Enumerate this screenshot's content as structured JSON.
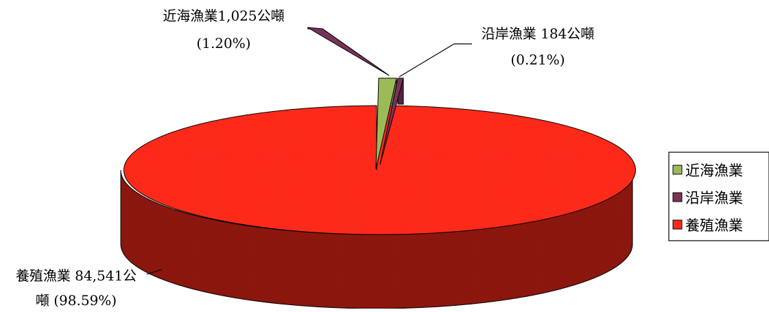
{
  "chart_data": {
    "type": "pie",
    "title": "",
    "slices": [
      {
        "name": "近海漁業",
        "value": 1025,
        "percent": 1.2,
        "color": "#9bbb59",
        "label_line1": "近海漁業1,025公噸",
        "label_line2": "(1.20%)"
      },
      {
        "name": "沿岸漁業",
        "value": 184,
        "percent": 0.21,
        "color": "#7a3358",
        "label_line1": "沿岸漁業 184公噸",
        "label_line2": "(0.21%)"
      },
      {
        "name": "養殖漁業",
        "value": 84541,
        "percent": 98.59,
        "color": "#ff2a1a",
        "label_line1": "養殖漁業 84,541公",
        "label_line2": "噸 (98.59%)"
      }
    ],
    "legend_position": "right",
    "three_d": true
  }
}
